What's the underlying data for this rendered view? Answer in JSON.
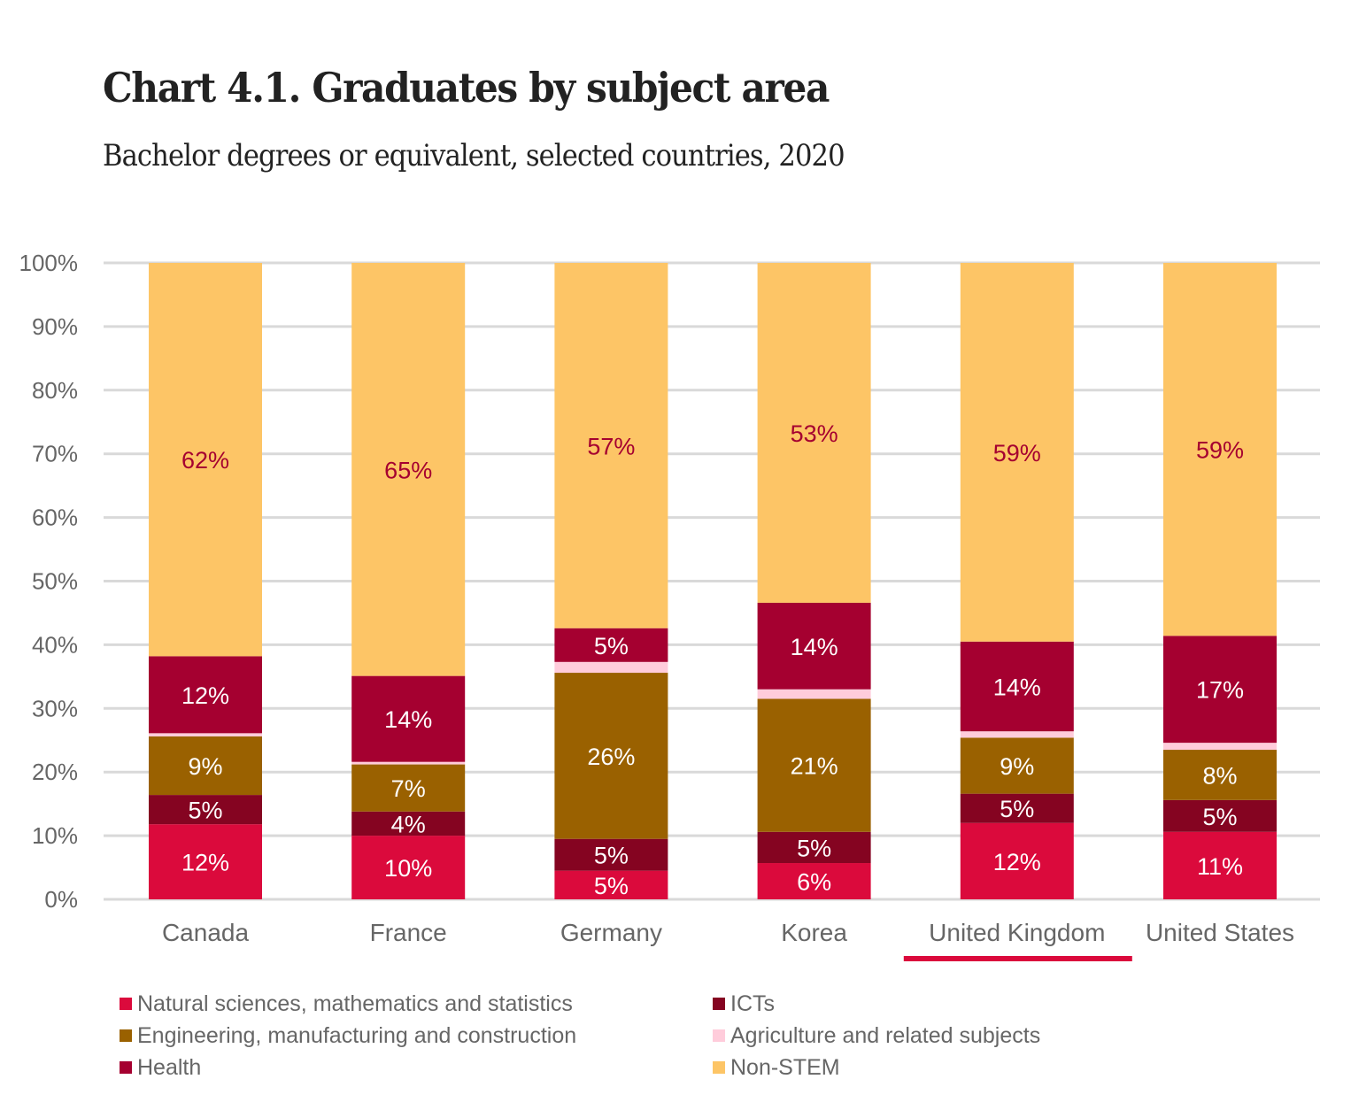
{
  "chart_data": {
    "type": "bar",
    "stacked": true,
    "title": "Chart 4.1. Graduates by subject area",
    "subtitle": "Bachelor degrees or equivalent, selected countries, 2020",
    "xlabel": "",
    "ylabel": "",
    "ylim": [
      0,
      100
    ],
    "yticks": [
      0,
      10,
      20,
      30,
      40,
      50,
      60,
      70,
      80,
      90,
      100
    ],
    "ytick_labels": [
      "0%",
      "10%",
      "20%",
      "30%",
      "40%",
      "50%",
      "60%",
      "70%",
      "80%",
      "90%",
      "100%"
    ],
    "grid": true,
    "legend_position": "bottom",
    "categories": [
      "Canada",
      "France",
      "Germany",
      "Korea",
      "United Kingdom",
      "United States"
    ],
    "highlighted_category": "United Kingdom",
    "highlight_color": "#DB0A3C",
    "series": [
      {
        "name": "Natural sciences, mathematics and statistics",
        "color": "#DB0A3C",
        "label_color": "#FFFFFF",
        "values": [
          11.8,
          10.0,
          4.5,
          5.7,
          12.0,
          10.6
        ],
        "labels": [
          "12%",
          "10%",
          "5%",
          "6%",
          "12%",
          "11%"
        ]
      },
      {
        "name": "ICTs",
        "color": "#850421",
        "label_color": "#FFFFFF",
        "values": [
          4.6,
          3.8,
          5.0,
          4.9,
          4.6,
          5.0
        ],
        "labels": [
          "5%",
          "4%",
          "5%",
          "5%",
          "5%",
          "5%"
        ]
      },
      {
        "name": "Engineering, manufacturing and construction",
        "color": "#9A6100",
        "label_color": "#FFFFFF",
        "values": [
          9.2,
          7.4,
          26.1,
          20.9,
          8.8,
          7.9
        ],
        "labels": [
          "9%",
          "7%",
          "26%",
          "21%",
          "9%",
          "8%"
        ]
      },
      {
        "name": "Agriculture and related subjects",
        "color": "#FFCCDB",
        "label_color": "#FFFFFF",
        "values": [
          0.5,
          0.4,
          1.7,
          1.5,
          1.0,
          1.1
        ],
        "labels": [
          "",
          "",
          "",
          "",
          "",
          ""
        ]
      },
      {
        "name": "Health",
        "color": "#A50030",
        "label_color": "#FFFFFF",
        "values": [
          12.1,
          13.5,
          5.3,
          13.6,
          14.1,
          16.8
        ],
        "labels": [
          "12%",
          "14%",
          "5%",
          "14%",
          "14%",
          "17%"
        ]
      },
      {
        "name": "Non-STEM",
        "color": "#FDC566",
        "label_color": "#A50030",
        "values": [
          61.8,
          64.9,
          57.4,
          53.4,
          59.5,
          58.6
        ],
        "labels": [
          "62%",
          "65%",
          "57%",
          "53%",
          "59%",
          "59%"
        ]
      }
    ],
    "legend_order": [
      0,
      1,
      2,
      3,
      4,
      5
    ]
  }
}
